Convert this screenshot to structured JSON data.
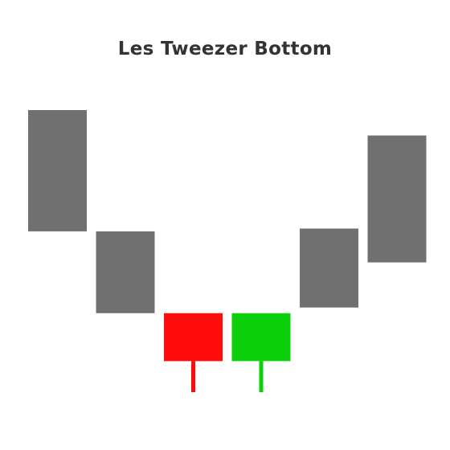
{
  "title": "Les Tweezer Bottom",
  "colors": {
    "neutral": "#707070",
    "bearish": "#ff0d0d",
    "bullish": "#0cd00c",
    "title": "#333333",
    "background": "#ffffff"
  },
  "chart_data": {
    "type": "candlestick",
    "ylim": [
      0,
      100
    ],
    "candles": [
      {
        "role": "neutral",
        "open": 100,
        "close": 57,
        "low": 57,
        "high": 100
      },
      {
        "role": "neutral",
        "open": 57,
        "close": 28,
        "low": 28,
        "high": 57
      },
      {
        "role": "bearish",
        "open": 28,
        "close": 11,
        "low": 0,
        "high": 28
      },
      {
        "role": "bullish",
        "open": 11,
        "close": 28,
        "low": 0,
        "high": 28
      },
      {
        "role": "neutral",
        "open": 30,
        "close": 58,
        "low": 30,
        "high": 58
      },
      {
        "role": "neutral",
        "open": 46,
        "close": 91,
        "low": 46,
        "high": 91
      }
    ]
  }
}
